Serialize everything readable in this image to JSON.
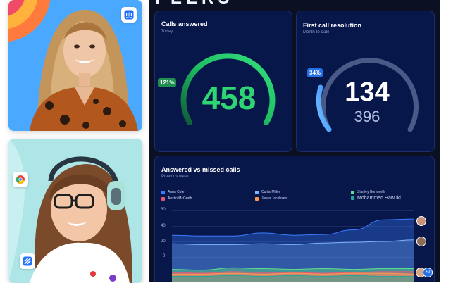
{
  "dashboard": {
    "title": "PEERS"
  },
  "calls_answered": {
    "title": "Calls answered",
    "subtitle": "Today",
    "value": "458",
    "percent": "121%",
    "accent": "#2fd572"
  },
  "first_call_resolution": {
    "title": "First call resolution",
    "subtitle": "Month-to-date",
    "value": "134",
    "target": "396",
    "percent": "34%",
    "accent": "#4da3ff"
  },
  "answered_vs_missed": {
    "title": "Answered vs missed calls",
    "subtitle": "Previous week",
    "legend": [
      {
        "name": "Anna Cole",
        "color": "#3c7bff"
      },
      {
        "name": "Curtis Miller",
        "color": "#7fb6ff"
      },
      {
        "name": "Stanley Bortworth",
        "color": "#5ee08a"
      },
      {
        "name": "Austin McGrath",
        "color": "#e8577a"
      },
      {
        "name": "Jonas Jacobsen",
        "color": "#ff9a4d"
      },
      {
        "name": "Mohammed Hawuki",
        "color": "#2aa39a"
      }
    ],
    "more_avatars": "+2"
  },
  "chart_data": {
    "type": "area",
    "title": "Answered vs missed calls",
    "subtitle": "Previous week",
    "yticks": [
      "60",
      "40",
      "20",
      "0"
    ],
    "ylim": [
      0,
      60
    ],
    "legend_position": "top",
    "grid": true,
    "series": [
      {
        "name": "Anna Cole",
        "values": [
          28,
          27,
          27,
          31,
          28,
          29,
          35,
          48,
          49
        ]
      },
      {
        "name": "Curtis Miller",
        "values": [
          17,
          16,
          16,
          17,
          16,
          18,
          19,
          20,
          22
        ]
      },
      {
        "name": "Stanley Bortworth",
        "values": [
          -16,
          -17,
          -14,
          -15,
          -16,
          -15,
          -16,
          -15,
          -15
        ]
      },
      {
        "name": "Austin McGrath",
        "values": [
          -20,
          -21,
          -19,
          -20,
          -20,
          -21,
          -20,
          -19,
          -19
        ]
      },
      {
        "name": "Jonas Jacobsen",
        "values": [
          -22,
          -22,
          -21,
          -22,
          -21,
          -22,
          -21,
          -21,
          -22
        ]
      },
      {
        "name": "Mohammed Hawuki",
        "values": [
          -25,
          -25,
          -24,
          -25,
          -24,
          -25,
          -24,
          -25,
          -25
        ]
      }
    ]
  },
  "icons": {
    "top_card_app": "intercom-icon",
    "bottom_card_app_1": "google-chrome-icon",
    "bottom_card_app_2": "zendesk-icon"
  }
}
